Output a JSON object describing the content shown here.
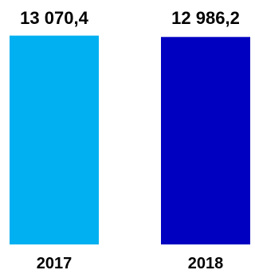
{
  "chart_data": {
    "type": "bar",
    "categories": [
      "2017",
      "2018"
    ],
    "values": [
      13070.4,
      12986.2
    ],
    "value_labels": [
      "13 070,4",
      "12 986,2"
    ],
    "colors": [
      "#00b0f0",
      "#0000c0"
    ],
    "title": "",
    "xlabel": "",
    "ylabel": "",
    "ylim": [
      0,
      13200
    ],
    "grid": false,
    "legend": "none"
  }
}
